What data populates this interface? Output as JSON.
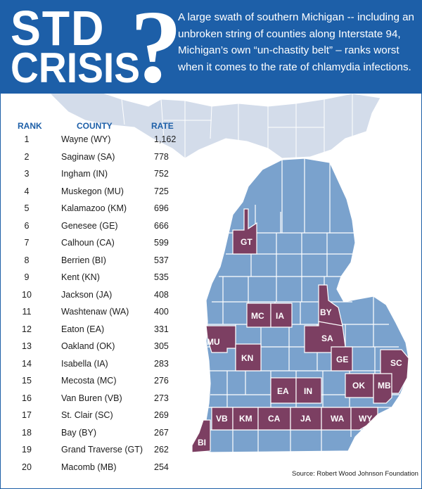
{
  "title": {
    "line1": "STD",
    "line2": "CRISIS",
    "mark": "?"
  },
  "intro": "A large swath of southern Michigan -- including an unbroken string of counties along Interstate 94, Michigan’s own “un-chastity belt” – ranks worst when it comes to the rate of chlamydia infections.",
  "columns": {
    "rank": "RANK",
    "county": "COUNTY",
    "rate": "RATE"
  },
  "rows": [
    {
      "rank": "1",
      "county": "Wayne (WY)",
      "rate": "1,162"
    },
    {
      "rank": "2",
      "county": "Saginaw (SA)",
      "rate": "778"
    },
    {
      "rank": "3",
      "county": "Ingham (IN)",
      "rate": "752"
    },
    {
      "rank": "4",
      "county": "Muskegon (MU)",
      "rate": "725"
    },
    {
      "rank": "5",
      "county": "Kalamazoo (KM)",
      "rate": "696"
    },
    {
      "rank": "6",
      "county": "Genesee (GE)",
      "rate": "666"
    },
    {
      "rank": "7",
      "county": "Calhoun (CA)",
      "rate": "599"
    },
    {
      "rank": "8",
      "county": "Berrien (BI)",
      "rate": "537"
    },
    {
      "rank": "9",
      "county": "Kent (KN)",
      "rate": "535"
    },
    {
      "rank": "10",
      "county": "Jackson (JA)",
      "rate": "408"
    },
    {
      "rank": "11",
      "county": "Washtenaw (WA)",
      "rate": "400"
    },
    {
      "rank": "12",
      "county": "Eaton  (EA)",
      "rate": "331"
    },
    {
      "rank": "13",
      "county": "Oakland (OK)",
      "rate": "305"
    },
    {
      "rank": "14",
      "county": "Isabella (IA)",
      "rate": "283"
    },
    {
      "rank": "15",
      "county": "Mecosta (MC)",
      "rate": "276"
    },
    {
      "rank": "16",
      "county": "Van Buren (VB)",
      "rate": "273"
    },
    {
      "rank": "17",
      "county": "St. Clair (SC)",
      "rate": "269"
    },
    {
      "rank": "18",
      "county": "Bay (BY)",
      "rate": "267"
    },
    {
      "rank": "19",
      "county": "Grand Traverse (GT)",
      "rate": "262"
    },
    {
      "rank": "20",
      "county": "Macomb (MB)",
      "rate": "254"
    }
  ],
  "map_labels": {
    "GT": "GT",
    "MC": "MC",
    "IA": "IA",
    "BY": "BY",
    "SA": "SA",
    "MU": "MU",
    "KN": "KN",
    "GE": "GE",
    "SC": "SC",
    "EA": "EA",
    "IN": "IN",
    "OK": "OK",
    "MB": "MB",
    "VB": "VB",
    "KM": "KM",
    "CA": "CA",
    "JA": "JA",
    "WA": "WA",
    "WY": "WY",
    "BI": "BI"
  },
  "colors": {
    "header_blue": "#1d5fa8",
    "map_blue": "#7aa2cd",
    "upper_peninsula": "#d3dcea",
    "highlight": "#7c3f62",
    "county_border": "#ffffff"
  },
  "source": "Source: Robert Wood Johnson Foundation"
}
